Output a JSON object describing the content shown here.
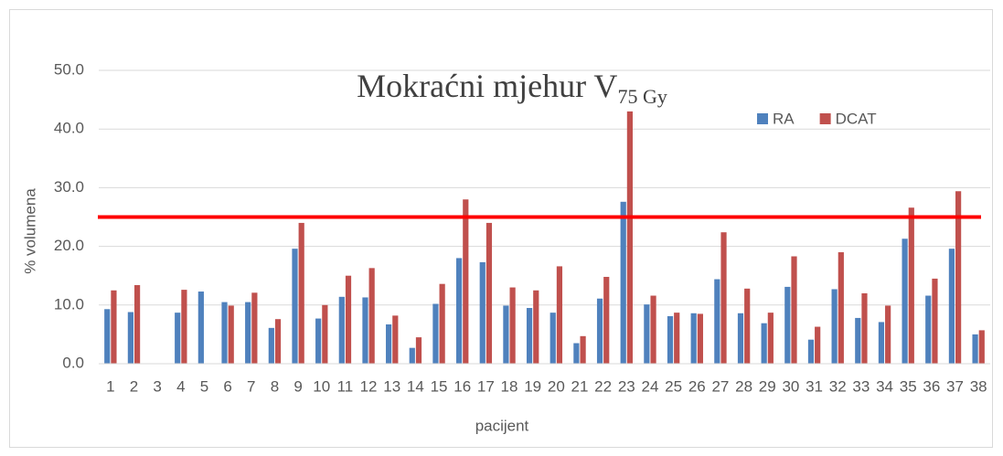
{
  "chart_data": {
    "type": "bar",
    "title": "Mokraćni mjehur V",
    "title_subscript": "75 Gy",
    "x_label": "pacijent",
    "y_label": "% volumena",
    "categories": [
      "1",
      "2",
      "3",
      "4",
      "5",
      "6",
      "7",
      "8",
      "9",
      "10",
      "11",
      "12",
      "13",
      "14",
      "15",
      "16",
      "17",
      "18",
      "19",
      "20",
      "21",
      "22",
      "23",
      "24",
      "25",
      "26",
      "27",
      "28",
      "29",
      "30",
      "31",
      "32",
      "33",
      "34",
      "35",
      "36",
      "37",
      "38"
    ],
    "series": [
      {
        "name": "RA",
        "color": "#4f81bd",
        "values": [
          9.3,
          8.8,
          null,
          8.7,
          12.3,
          10.5,
          10.5,
          6.1,
          19.6,
          7.7,
          11.4,
          11.3,
          6.7,
          2.7,
          10.2,
          18.0,
          17.3,
          9.9,
          9.5,
          8.7,
          3.5,
          11.1,
          27.6,
          10.1,
          8.1,
          8.6,
          14.4,
          8.6,
          6.9,
          13.1,
          4.1,
          12.7,
          7.8,
          7.1,
          21.3,
          11.6,
          19.6,
          5.0
        ]
      },
      {
        "name": "DCAT",
        "color": "#c0504d",
        "values": [
          12.5,
          13.4,
          null,
          12.6,
          null,
          9.9,
          12.1,
          7.6,
          24.0,
          10.0,
          15.0,
          16.3,
          8.2,
          4.5,
          13.6,
          28.0,
          24.0,
          13.0,
          12.5,
          16.6,
          4.7,
          14.8,
          43.0,
          11.6,
          8.7,
          8.5,
          22.4,
          12.8,
          8.7,
          18.3,
          6.3,
          19.0,
          12.0,
          9.9,
          26.6,
          14.5,
          29.4,
          5.7
        ]
      }
    ],
    "ylim": [
      0,
      50
    ],
    "yticks": [
      {
        "value": 0,
        "label": "0.0"
      },
      {
        "value": 10,
        "label": "10.0"
      },
      {
        "value": 20,
        "label": "20.0"
      },
      {
        "value": 30,
        "label": "30.0"
      },
      {
        "value": 40,
        "label": "40.0"
      },
      {
        "value": 50,
        "label": "50.0"
      }
    ],
    "grid": true,
    "legend": "top-right",
    "reference_line": {
      "value": 25,
      "color": "#ff0000"
    }
  }
}
